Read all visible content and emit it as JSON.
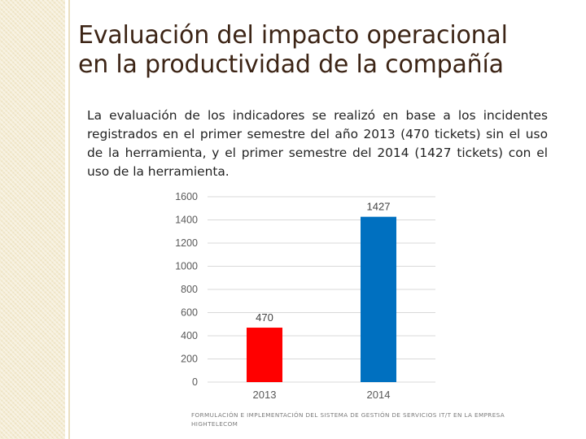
{
  "slide": {
    "title_line1": "Evaluación del impacto operacional",
    "title_line2": "en la productividad de la compañía",
    "body": "La evaluación de los indicadores se realizó en base a los incidentes registrados en el primer semestre del año 2013 (470 tickets) sin el uso de la herramienta, y el primer semestre del 2014 (1427 tickets) con el uso de la herramienta.",
    "footer": "FORMULACIÓN E IMPLEMENTACIÓN DEL SISTEMA DE GESTIÓN DE SERVICIOS IT/T EN LA EMPRESA HIGHTELECOM"
  },
  "colors": {
    "title": "#3c2415",
    "bar_2013": "#ff0000",
    "bar_2014": "#0070c0",
    "gridline": "#d9d9d9"
  },
  "chart_data": {
    "type": "bar",
    "title": "",
    "xlabel": "",
    "ylabel": "",
    "categories": [
      "2013",
      "2014"
    ],
    "values": [
      470,
      1427
    ],
    "data_labels": [
      "470",
      "1427"
    ],
    "bar_colors": [
      "#ff0000",
      "#0070c0"
    ],
    "ylim": [
      0,
      1600
    ],
    "yticks": [
      0,
      200,
      400,
      600,
      800,
      1000,
      1200,
      1400,
      1600
    ],
    "ytick_labels": [
      "0",
      "200",
      "400",
      "600",
      "800",
      "1000",
      "1200",
      "1400",
      "1600"
    ],
    "grid": true,
    "legend": "none"
  }
}
